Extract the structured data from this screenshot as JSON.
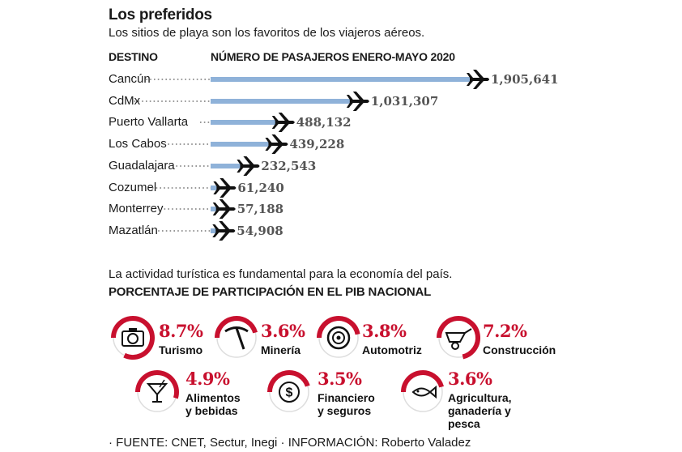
{
  "header": {
    "title": "Los preferidos",
    "subtitle": "Los sitios de playa son los favoritos de los viajeros aéreos."
  },
  "chart_data": {
    "type": "bar",
    "orientation": "horizontal",
    "xlabel": "NÚMERO DE PASAJEROS ENERO-MAYO 2020",
    "ylabel": "DESTINO",
    "categories": [
      "Cancún",
      "CdMx",
      "Puerto Vallarta",
      "Los Cabos",
      "Guadalajara",
      "Cozumel",
      "Monterrey",
      "Mazatlán"
    ],
    "values": [
      1905641,
      1031307,
      488132,
      439228,
      232543,
      61240,
      57188,
      54908
    ],
    "value_labels": [
      "1,905,641",
      "1,031,307",
      "488,132",
      "439,228",
      "232,543",
      "61,240",
      "57,188",
      "54,908"
    ],
    "bar_color": "#8fb2d9",
    "grid": false
  },
  "pib": {
    "intro": "La actividad turística es fundamental para la economía del país.",
    "heading": "PORCENTAJE DE PARTICIPACIÓN EN EL PIB NACIONAL",
    "accent_color": "#c8102e",
    "items": [
      {
        "value": "8.7%",
        "label_lines": [
          "Turismo"
        ],
        "icon": "camera-icon"
      },
      {
        "value": "3.6%",
        "label_lines": [
          "Minería"
        ],
        "icon": "pickaxe-icon"
      },
      {
        "value": "3.8%",
        "label_lines": [
          "Automotriz"
        ],
        "icon": "tire-icon"
      },
      {
        "value": "7.2%",
        "label_lines": [
          "Construcción"
        ],
        "icon": "wheelbarrow-icon"
      },
      {
        "value": "4.9%",
        "label_lines": [
          "Alimentos",
          "y bebidas"
        ],
        "icon": "cocktail-icon"
      },
      {
        "value": "3.5%",
        "label_lines": [
          "Financiero",
          "y seguros"
        ],
        "icon": "coin-icon"
      },
      {
        "value": "3.6%",
        "label_lines": [
          "Agricultura,",
          "ganadería y",
          "pesca"
        ],
        "icon": "fish-icon"
      }
    ]
  },
  "source": "· FUENTE: CNET, Sectur, Inegi · INFORMACIÓN: Roberto Valadez"
}
